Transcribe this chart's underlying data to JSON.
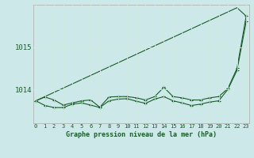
{
  "title": "Graphe pression niveau de la mer (hPa)",
  "bg_color": "#cce8e8",
  "grid_color": "#b0d8d8",
  "line_color": "#1a5c2a",
  "x_labels": [
    "0",
    "1",
    "2",
    "3",
    "4",
    "5",
    "6",
    "7",
    "8",
    "9",
    "10",
    "11",
    "12",
    "13",
    "14",
    "15",
    "16",
    "17",
    "18",
    "19",
    "20",
    "21",
    "22",
    "23"
  ],
  "yticks": [
    1014,
    1015
  ],
  "ylim": [
    1013.2,
    1016.0
  ],
  "xlim": [
    -0.3,
    23.3
  ],
  "series_smooth": [
    1013.73,
    1013.83,
    1013.93,
    1014.03,
    1014.13,
    1014.23,
    1014.33,
    1014.43,
    1014.53,
    1014.63,
    1014.73,
    1014.83,
    1014.93,
    1015.03,
    1015.13,
    1015.23,
    1015.33,
    1015.43,
    1015.53,
    1015.63,
    1015.73,
    1015.83,
    1015.93,
    1015.73
  ],
  "series_main": [
    1013.73,
    1013.82,
    1013.75,
    1013.63,
    1013.68,
    1013.73,
    1013.75,
    1013.58,
    1013.82,
    1013.83,
    1013.83,
    1013.8,
    1013.75,
    1013.83,
    1014.05,
    1013.83,
    1013.8,
    1013.75,
    1013.75,
    1013.8,
    1013.83,
    1014.02,
    1014.5,
    1015.73
  ],
  "series_lower": [
    1013.73,
    1013.62,
    1013.57,
    1013.57,
    1013.65,
    1013.68,
    1013.63,
    1013.57,
    1013.73,
    1013.77,
    1013.78,
    1013.72,
    1013.67,
    1013.77,
    1013.83,
    1013.73,
    1013.68,
    1013.62,
    1013.65,
    1013.7,
    1013.73,
    1014.0,
    1014.45,
    1015.6
  ]
}
